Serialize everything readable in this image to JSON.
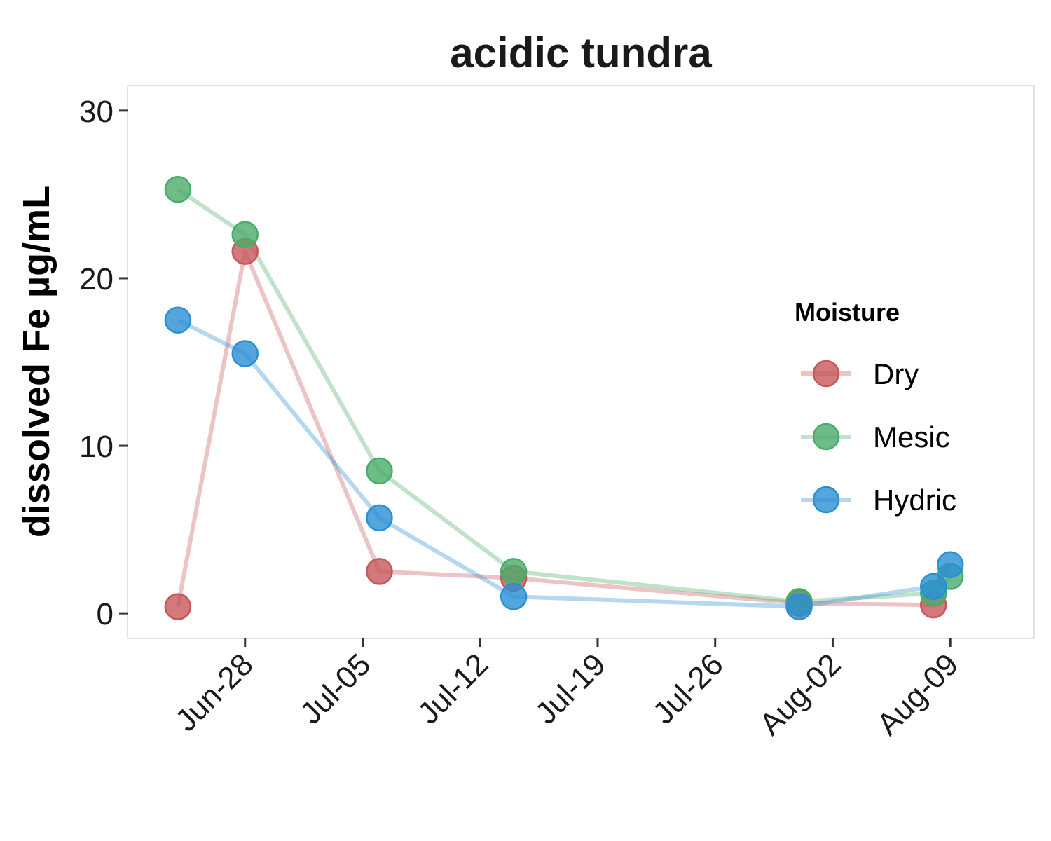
{
  "chart_data": {
    "type": "line",
    "title": "acidic tundra",
    "xlabel": "",
    "ylabel": "dissolved Fe µg/mL",
    "ylim": [
      -1.5,
      31.5
    ],
    "xlim": [
      "2019-06-21",
      "2019-08-14"
    ],
    "yticks": [
      0,
      10,
      20,
      30
    ],
    "xticks": [
      "2019-06-28",
      "2019-07-05",
      "2019-07-12",
      "2019-07-19",
      "2019-07-26",
      "2019-08-02",
      "2019-08-09"
    ],
    "xtick_labels": [
      "Jun-28",
      "Jul-05",
      "Jul-12",
      "Jul-19",
      "Jul-26",
      "Aug-02",
      "Aug-09"
    ],
    "grid": false,
    "legend": {
      "title": "Moisture",
      "placement": "right"
    },
    "series": [
      {
        "name": "Dry",
        "color": "#c8565a",
        "points": [
          {
            "x": "2019-06-24",
            "y": 0.4
          },
          {
            "x": "2019-06-28",
            "y": 21.6
          },
          {
            "x": "2019-07-06",
            "y": 2.5
          },
          {
            "x": "2019-07-14",
            "y": 2.1
          },
          {
            "x": "2019-07-31",
            "y": 0.6
          },
          {
            "x": "2019-08-08",
            "y": 0.5
          }
        ]
      },
      {
        "name": "Mesic",
        "color": "#4aac6a",
        "points": [
          {
            "x": "2019-06-24",
            "y": 25.3
          },
          {
            "x": "2019-06-28",
            "y": 22.6
          },
          {
            "x": "2019-07-06",
            "y": 8.5
          },
          {
            "x": "2019-07-14",
            "y": 2.5
          },
          {
            "x": "2019-07-31",
            "y": 0.7
          },
          {
            "x": "2019-08-08",
            "y": 1.2
          },
          {
            "x": "2019-08-09",
            "y": 2.2
          }
        ]
      },
      {
        "name": "Hydric",
        "color": "#2a8fd4",
        "points": [
          {
            "x": "2019-06-24",
            "y": 17.5
          },
          {
            "x": "2019-06-28",
            "y": 15.5
          },
          {
            "x": "2019-07-06",
            "y": 5.7
          },
          {
            "x": "2019-07-14",
            "y": 1.0
          },
          {
            "x": "2019-07-31",
            "y": 0.4
          },
          {
            "x": "2019-08-08",
            "y": 1.6
          },
          {
            "x": "2019-08-09",
            "y": 2.9
          }
        ]
      }
    ]
  }
}
